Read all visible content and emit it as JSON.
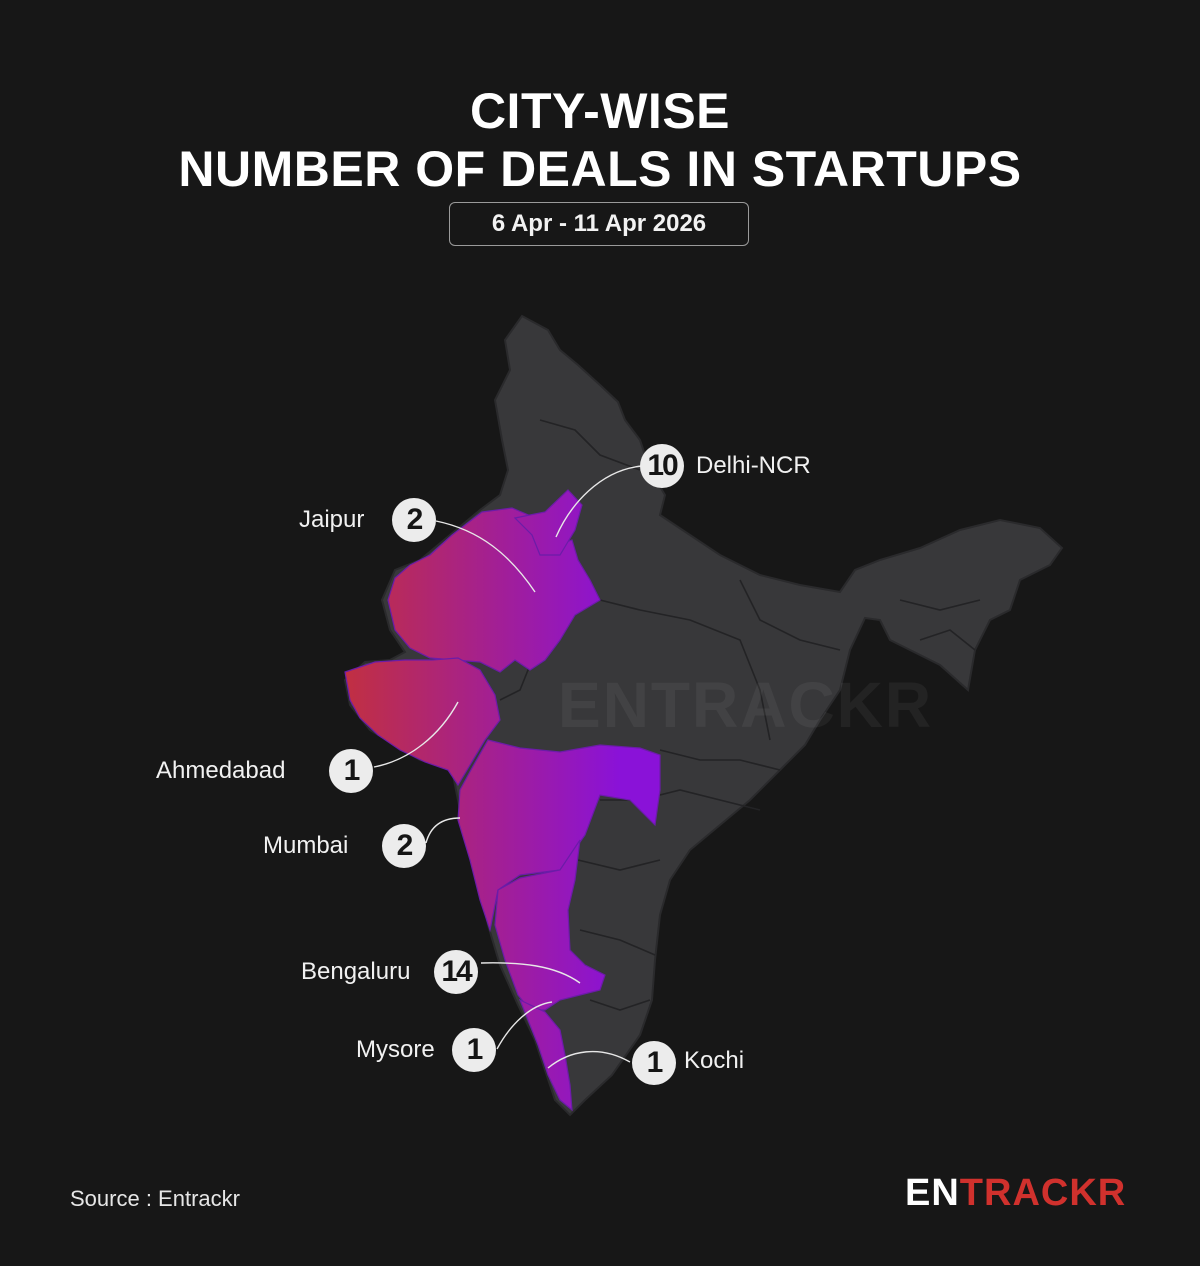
{
  "header": {
    "title_line1": "CITY-WISE",
    "title_line2": "NUMBER OF DEALS IN STARTUPS",
    "date_range": "6 Apr - 11 Apr 2026"
  },
  "cities": [
    {
      "name": "Delhi-NCR",
      "deals": "10"
    },
    {
      "name": "Jaipur",
      "deals": "2"
    },
    {
      "name": "Ahmedabad",
      "deals": "1"
    },
    {
      "name": "Mumbai",
      "deals": "2"
    },
    {
      "name": "Bengaluru",
      "deals": "14"
    },
    {
      "name": "Mysore",
      "deals": "1"
    },
    {
      "name": "Kochi",
      "deals": "1"
    }
  ],
  "highlighted_regions": [
    "Delhi-NCR",
    "Rajasthan",
    "Gujarat",
    "Maharashtra",
    "Karnataka",
    "Kerala"
  ],
  "colors": {
    "background": "#171717",
    "map_base": "#38383a",
    "gradient_start": "#c2303f",
    "gradient_end": "#8a12d8",
    "badge": "#ececec",
    "brand_red": "#d0312d"
  },
  "footer": {
    "source": "Source : Entrackr",
    "logo_part1": "EN",
    "logo_part2": "TRACKR"
  },
  "watermark": "ENTRACKR"
}
